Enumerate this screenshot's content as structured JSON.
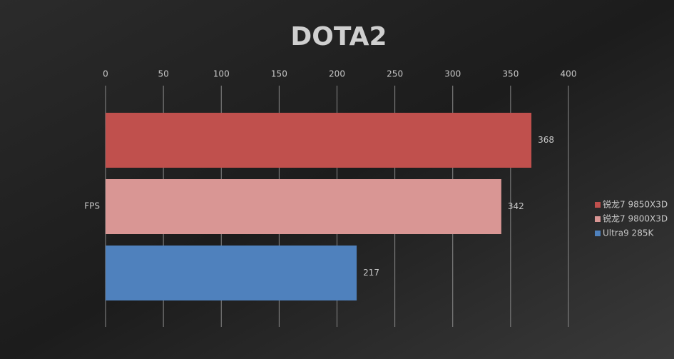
{
  "chart_data": {
    "type": "bar",
    "title": "DOTA2",
    "categories": [
      "FPS"
    ],
    "series": [
      {
        "name": "锐龙7 9850X3D",
        "color": "#c0504d",
        "values": [
          368
        ]
      },
      {
        "name": "锐龙7 9800X3D",
        "color": "#d99694",
        "values": [
          342
        ]
      },
      {
        "name": "Ultra9 285K",
        "color": "#4f81bd",
        "values": [
          217
        ]
      }
    ],
    "xlim": [
      0,
      400
    ],
    "xticks": [
      0,
      50,
      100,
      150,
      200,
      250,
      300,
      350,
      400
    ],
    "grid": true,
    "legend": "right"
  }
}
